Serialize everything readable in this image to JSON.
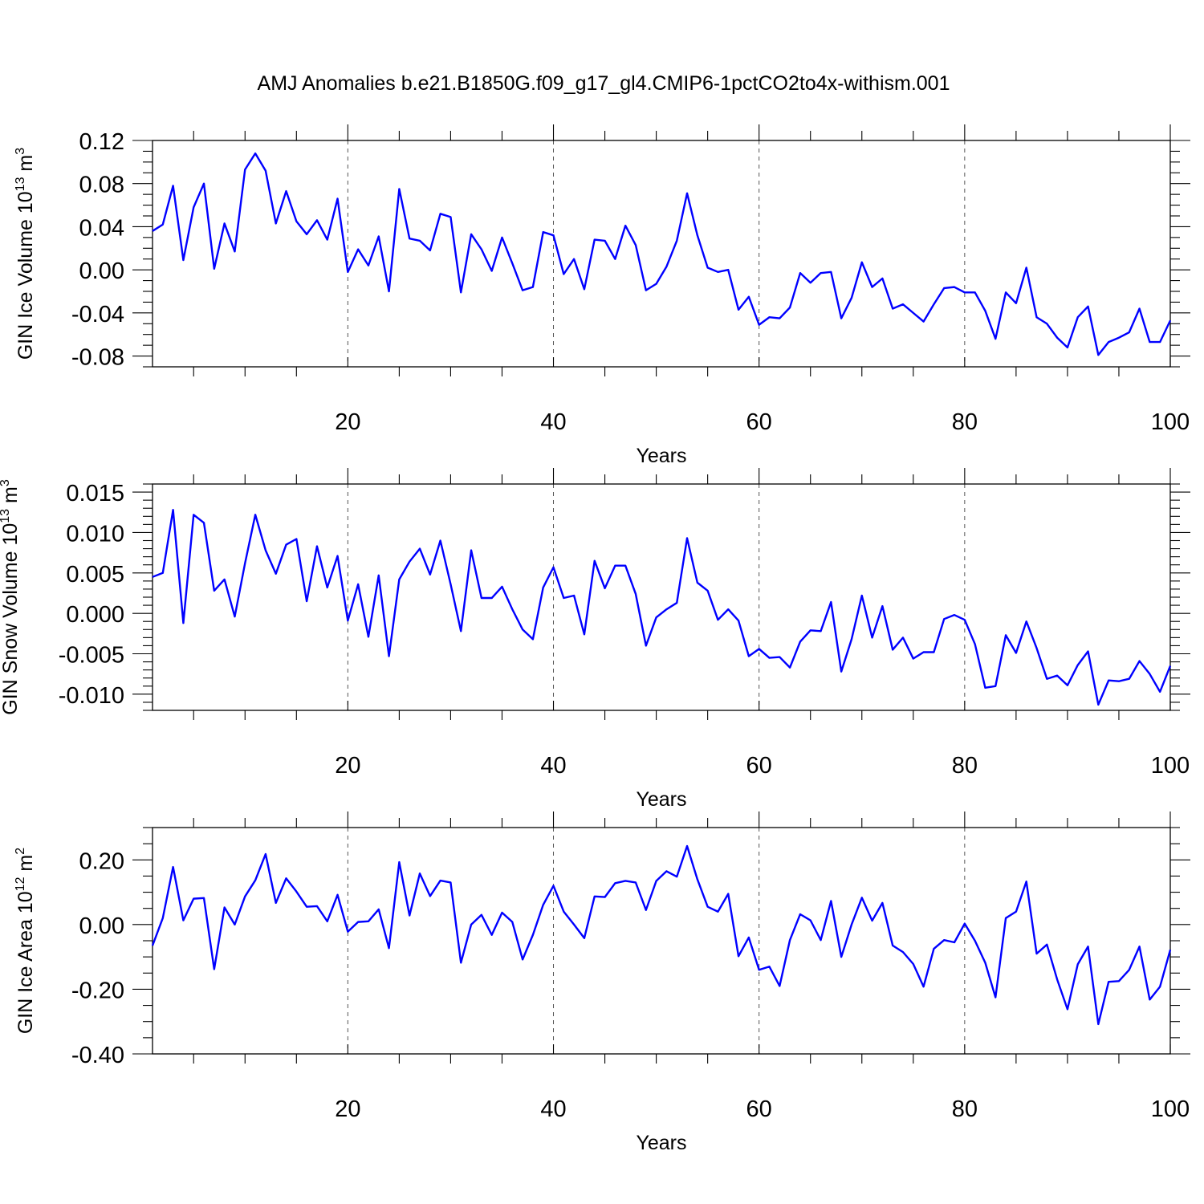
{
  "title": "AMJ Anomalies b.e21.B1850G.f09_g17_gl4.CMIP6-1pctCO2to4x-withism.001",
  "line_color": "#0000ff",
  "chart_data": [
    {
      "type": "line",
      "name": "ice-volume",
      "ylabel": "GIN Ice Volume 10",
      "ylabel_exp": "13",
      "ylabel_unit": " m",
      "ylabel_unit_exp": "3",
      "xlabel": "Years",
      "xlim": [
        1,
        100
      ],
      "ylim": [
        -0.09,
        0.12
      ],
      "xticks": [
        20,
        40,
        60,
        80,
        100
      ],
      "xtick_labels": [
        "20",
        "40",
        "60",
        "80",
        "100"
      ],
      "yticks": [
        0.12,
        0.08,
        0.04,
        0.0,
        -0.04,
        -0.08
      ],
      "ytick_labels": [
        "0.12",
        "0.08",
        "0.04",
        "0.00",
        "-0.04",
        "-0.08"
      ],
      "yminor_step": 0.01,
      "grid": "dashed vertical at major x ticks",
      "x": [
        1,
        2,
        3,
        4,
        5,
        6,
        7,
        8,
        9,
        10,
        11,
        12,
        13,
        14,
        15,
        16,
        17,
        18,
        19,
        20,
        21,
        22,
        23,
        24,
        25,
        26,
        27,
        28,
        29,
        30,
        31,
        32,
        33,
        34,
        35,
        36,
        37,
        38,
        39,
        40,
        41,
        42,
        43,
        44,
        45,
        46,
        47,
        48,
        49,
        50,
        51,
        52,
        53,
        54,
        55,
        56,
        57,
        58,
        59,
        60,
        61,
        62,
        63,
        64,
        65,
        66,
        67,
        68,
        69,
        70,
        71,
        72,
        73,
        74,
        75,
        76,
        77,
        78,
        79,
        80,
        81,
        82,
        83,
        84,
        85,
        86,
        87,
        88,
        89,
        90,
        91,
        92,
        93,
        94,
        95,
        96,
        97,
        98,
        99,
        100
      ],
      "values": [
        0.036,
        0.042,
        0.078,
        0.009,
        0.058,
        0.08,
        0.001,
        0.043,
        0.017,
        0.093,
        0.108,
        0.092,
        0.043,
        0.073,
        0.045,
        0.033,
        0.046,
        0.028,
        0.066,
        -0.002,
        0.019,
        0.004,
        0.031,
        -0.02,
        0.075,
        0.029,
        0.027,
        0.018,
        0.052,
        0.049,
        -0.021,
        0.033,
        0.019,
        -0.001,
        0.03,
        0.006,
        -0.019,
        -0.016,
        0.035,
        0.032,
        -0.004,
        0.01,
        -0.018,
        0.028,
        0.027,
        0.01,
        0.041,
        0.023,
        -0.019,
        -0.013,
        0.003,
        0.027,
        0.071,
        0.032,
        0.002,
        -0.002,
        0.0,
        -0.037,
        -0.025,
        -0.051,
        -0.044,
        -0.045,
        -0.035,
        -0.003,
        -0.012,
        -0.003,
        -0.002,
        -0.045,
        -0.026,
        0.007,
        -0.016,
        -0.008,
        -0.036,
        -0.032,
        -0.04,
        -0.048,
        -0.032,
        -0.017,
        -0.016,
        -0.021,
        -0.021,
        -0.038,
        -0.064,
        -0.021,
        -0.031,
        0.002,
        -0.044,
        -0.05,
        -0.063,
        -0.072,
        -0.044,
        -0.034,
        -0.079,
        -0.067,
        -0.063,
        -0.058,
        -0.036,
        -0.067,
        -0.067,
        -0.047
      ]
    },
    {
      "type": "line",
      "name": "snow-volume",
      "ylabel": "GIN Snow Volume 10",
      "ylabel_exp": "13",
      "ylabel_unit": " m",
      "ylabel_unit_exp": "3",
      "xlabel": "Years",
      "xlim": [
        1,
        100
      ],
      "ylim": [
        -0.012,
        0.016
      ],
      "xticks": [
        20,
        40,
        60,
        80,
        100
      ],
      "xtick_labels": [
        "20",
        "40",
        "60",
        "80",
        "100"
      ],
      "yticks": [
        0.015,
        0.01,
        0.005,
        0.0,
        -0.005,
        -0.01
      ],
      "ytick_labels": [
        "0.015",
        "0.010",
        "0.005",
        "0.000",
        "-0.005",
        "-0.010"
      ],
      "yminor_step": 0.001,
      "grid": "dashed vertical at major x ticks",
      "x": [
        1,
        2,
        3,
        4,
        5,
        6,
        7,
        8,
        9,
        10,
        11,
        12,
        13,
        14,
        15,
        16,
        17,
        18,
        19,
        20,
        21,
        22,
        23,
        24,
        25,
        26,
        27,
        28,
        29,
        30,
        31,
        32,
        33,
        34,
        35,
        36,
        37,
        38,
        39,
        40,
        41,
        42,
        43,
        44,
        45,
        46,
        47,
        48,
        49,
        50,
        51,
        52,
        53,
        54,
        55,
        56,
        57,
        58,
        59,
        60,
        61,
        62,
        63,
        64,
        65,
        66,
        67,
        68,
        69,
        70,
        71,
        72,
        73,
        74,
        75,
        76,
        77,
        78,
        79,
        80,
        81,
        82,
        83,
        84,
        85,
        86,
        87,
        88,
        89,
        90,
        91,
        92,
        93,
        94,
        95,
        96,
        97,
        98,
        99,
        100
      ],
      "values": [
        0.0045,
        0.005,
        0.0128,
        -0.0012,
        0.0122,
        0.0112,
        0.0028,
        0.0042,
        -0.0004,
        0.0062,
        0.0122,
        0.0078,
        0.0049,
        0.0085,
        0.0092,
        0.0015,
        0.0083,
        0.0032,
        0.0071,
        -0.0009,
        0.0036,
        -0.0029,
        0.0047,
        -0.0053,
        0.0042,
        0.0064,
        0.008,
        0.0048,
        0.009,
        0.0036,
        -0.0022,
        0.0078,
        0.0019,
        0.0019,
        0.0033,
        0.0005,
        -0.002,
        -0.0032,
        0.0032,
        0.0057,
        0.0019,
        0.0022,
        -0.0026,
        0.0065,
        0.0031,
        0.0059,
        0.0059,
        0.0024,
        -0.004,
        -0.0005,
        0.0005,
        0.0013,
        0.0093,
        0.0038,
        0.0028,
        -0.0008,
        0.0005,
        -0.0009,
        -0.0053,
        -0.0044,
        -0.0055,
        -0.0054,
        -0.0067,
        -0.0035,
        -0.0021,
        -0.0022,
        0.0014,
        -0.0072,
        -0.0032,
        0.0022,
        -0.003,
        0.0009,
        -0.0045,
        -0.003,
        -0.0056,
        -0.0048,
        -0.0048,
        -0.0007,
        -0.0002,
        -0.0008,
        -0.0038,
        -0.0092,
        -0.009,
        -0.0027,
        -0.0049,
        -0.001,
        -0.0043,
        -0.0081,
        -0.0077,
        -0.0089,
        -0.0064,
        -0.0047,
        -0.0113,
        -0.0083,
        -0.0084,
        -0.0081,
        -0.0059,
        -0.0075,
        -0.0097,
        -0.0065
      ]
    },
    {
      "type": "line",
      "name": "ice-area",
      "ylabel": "GIN Ice Area 10",
      "ylabel_exp": "12",
      "ylabel_unit": " m",
      "ylabel_unit_exp": "2",
      "xlabel": "Years",
      "xlim": [
        1,
        100
      ],
      "ylim": [
        -0.4,
        0.3
      ],
      "xticks": [
        20,
        40,
        60,
        80,
        100
      ],
      "xtick_labels": [
        "20",
        "40",
        "60",
        "80",
        "100"
      ],
      "yticks": [
        0.2,
        0.0,
        -0.2,
        -0.4
      ],
      "ytick_labels": [
        "0.20",
        "0.00",
        "-0.20",
        "-0.40"
      ],
      "yminor_step": 0.05,
      "grid": "dashed vertical at major x ticks",
      "x": [
        1,
        2,
        3,
        4,
        5,
        6,
        7,
        8,
        9,
        10,
        11,
        12,
        13,
        14,
        15,
        16,
        17,
        18,
        19,
        20,
        21,
        22,
        23,
        24,
        25,
        26,
        27,
        28,
        29,
        30,
        31,
        32,
        33,
        34,
        35,
        36,
        37,
        38,
        39,
        40,
        41,
        42,
        43,
        44,
        45,
        46,
        47,
        48,
        49,
        50,
        51,
        52,
        53,
        54,
        55,
        56,
        57,
        58,
        59,
        60,
        61,
        62,
        63,
        64,
        65,
        66,
        67,
        68,
        69,
        70,
        71,
        72,
        73,
        74,
        75,
        76,
        77,
        78,
        79,
        80,
        81,
        82,
        83,
        84,
        85,
        86,
        87,
        88,
        89,
        90,
        91,
        92,
        93,
        94,
        95,
        96,
        97,
        98,
        99,
        100
      ],
      "values": [
        -0.065,
        0.02,
        0.178,
        0.013,
        0.08,
        0.082,
        -0.138,
        0.053,
        0.0,
        0.087,
        0.137,
        0.218,
        0.067,
        0.143,
        0.102,
        0.055,
        0.057,
        0.01,
        0.092,
        -0.022,
        0.008,
        0.01,
        0.047,
        -0.073,
        0.193,
        0.028,
        0.158,
        0.088,
        0.136,
        0.13,
        -0.118,
        0.0,
        0.03,
        -0.032,
        0.037,
        0.008,
        -0.108,
        -0.032,
        0.061,
        0.12,
        0.04,
        0.0,
        -0.042,
        0.087,
        0.085,
        0.128,
        0.135,
        0.13,
        0.045,
        0.135,
        0.165,
        0.148,
        0.243,
        0.14,
        0.055,
        0.04,
        0.095,
        -0.098,
        -0.04,
        -0.14,
        -0.13,
        -0.19,
        -0.048,
        0.032,
        0.013,
        -0.048,
        0.073,
        -0.1,
        0.0,
        0.083,
        0.012,
        0.067,
        -0.065,
        -0.085,
        -0.122,
        -0.192,
        -0.075,
        -0.048,
        -0.055,
        0.003,
        -0.05,
        -0.118,
        -0.225,
        0.02,
        0.04,
        0.133,
        -0.09,
        -0.062,
        -0.17,
        -0.262,
        -0.123,
        -0.068,
        -0.308,
        -0.177,
        -0.175,
        -0.14,
        -0.068,
        -0.232,
        -0.192,
        -0.078
      ]
    }
  ]
}
